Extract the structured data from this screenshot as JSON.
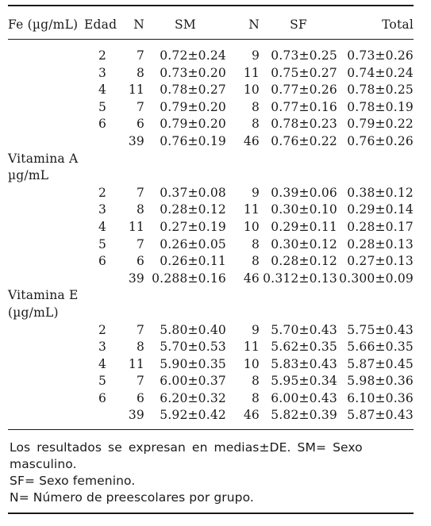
{
  "table": {
    "headers": {
      "label": "Fe (µg/mL)",
      "edad": "Edad",
      "n_sm": "N",
      "sm": "SM",
      "n_sf": "N",
      "sf": "SF",
      "total": "Total"
    },
    "sections": [
      {
        "label_lines": [],
        "rows": [
          {
            "edad": "2",
            "n_sm": "7",
            "sm": "0.72±0.24",
            "n_sf": "9",
            "sf": "0.73±0.25",
            "total": "0.73±0.26"
          },
          {
            "edad": "3",
            "n_sm": "8",
            "sm": "0.73±0.20",
            "n_sf": "11",
            "sf": "0.75±0.27",
            "total": "0.74±0.24"
          },
          {
            "edad": "4",
            "n_sm": "11",
            "sm": "0.78±0.27",
            "n_sf": "10",
            "sf": "0.77±0.26",
            "total": "0.78±0.25"
          },
          {
            "edad": "5",
            "n_sm": "7",
            "sm": "0.79±0.20",
            "n_sf": "8",
            "sf": "0.77±0.16",
            "total": "0.78±0.19"
          },
          {
            "edad": "6",
            "n_sm": "6",
            "sm": "0.79±0.20",
            "n_sf": "8",
            "sf": "0.78±0.23",
            "total": "0.79±0.22"
          },
          {
            "edad": "",
            "n_sm": "39",
            "sm": "0.76±0.19",
            "n_sf": "46",
            "sf": "0.76±0.22",
            "total": "0.76±0.26"
          }
        ]
      },
      {
        "label_lines": [
          "Vitamina A",
          "µg/mL"
        ],
        "rows": [
          {
            "edad": "2",
            "n_sm": "7",
            "sm": "0.37±0.08",
            "n_sf": "9",
            "sf": "0.39±0.06",
            "total": "0.38±0.12"
          },
          {
            "edad": "3",
            "n_sm": "8",
            "sm": "0.28±0.12",
            "n_sf": "11",
            "sf": "0.30±0.10",
            "total": "0.29±0.14"
          },
          {
            "edad": "4",
            "n_sm": "11",
            "sm": "0.27±0.19",
            "n_sf": "10",
            "sf": "0.29±0.11",
            "total": "0.28±0.17"
          },
          {
            "edad": "5",
            "n_sm": "7",
            "sm": "0.26±0.05",
            "n_sf": "8",
            "sf": "0.30±0.12",
            "total": "0.28±0.13"
          },
          {
            "edad": "6",
            "n_sm": "6",
            "sm": "0.26±0.11",
            "n_sf": "8",
            "sf": "0.28±0.12",
            "total": "0.27±0.13"
          },
          {
            "edad": "",
            "n_sm": "39",
            "sm": "0.288±0.16",
            "n_sf": "46",
            "sf": "0.312±0.13",
            "total": "0.300±0.09"
          }
        ]
      },
      {
        "label_lines": [
          "Vitamina E",
          "(µg/mL)"
        ],
        "rows": [
          {
            "edad": "2",
            "n_sm": "7",
            "sm": "5.80±0.40",
            "n_sf": "9",
            "sf": "5.70±0.43",
            "total": "5.75±0.43"
          },
          {
            "edad": "3",
            "n_sm": "8",
            "sm": "5.70±0.53",
            "n_sf": "11",
            "sf": "5.62±0.35",
            "total": "5.66±0.35"
          },
          {
            "edad": "4",
            "n_sm": "11",
            "sm": "5.90±0.35",
            "n_sf": "10",
            "sf": "5.83±0.43",
            "total": "5.87±0.45"
          },
          {
            "edad": "5",
            "n_sm": "7",
            "sm": "6.00±0.37",
            "n_sf": "8",
            "sf": "5.95±0.34",
            "total": "5.98±0.36"
          },
          {
            "edad": "6",
            "n_sm": "6",
            "sm": "6.20±0.32",
            "n_sf": "8",
            "sf": "6.00±0.43",
            "total": "6.10±0.36"
          },
          {
            "edad": "",
            "n_sm": "39",
            "sm": "5.92±0.42",
            "n_sf": "46",
            "sf": "5.82±0.39",
            "total": "5.87±0.43"
          }
        ]
      }
    ]
  },
  "notes": {
    "line1": "Los resultados se expresan en medias±DE. SM= Sexo masculino.",
    "line2": "SF= Sexo femenino.",
    "line3": "N= Número de preescolares por grupo."
  }
}
